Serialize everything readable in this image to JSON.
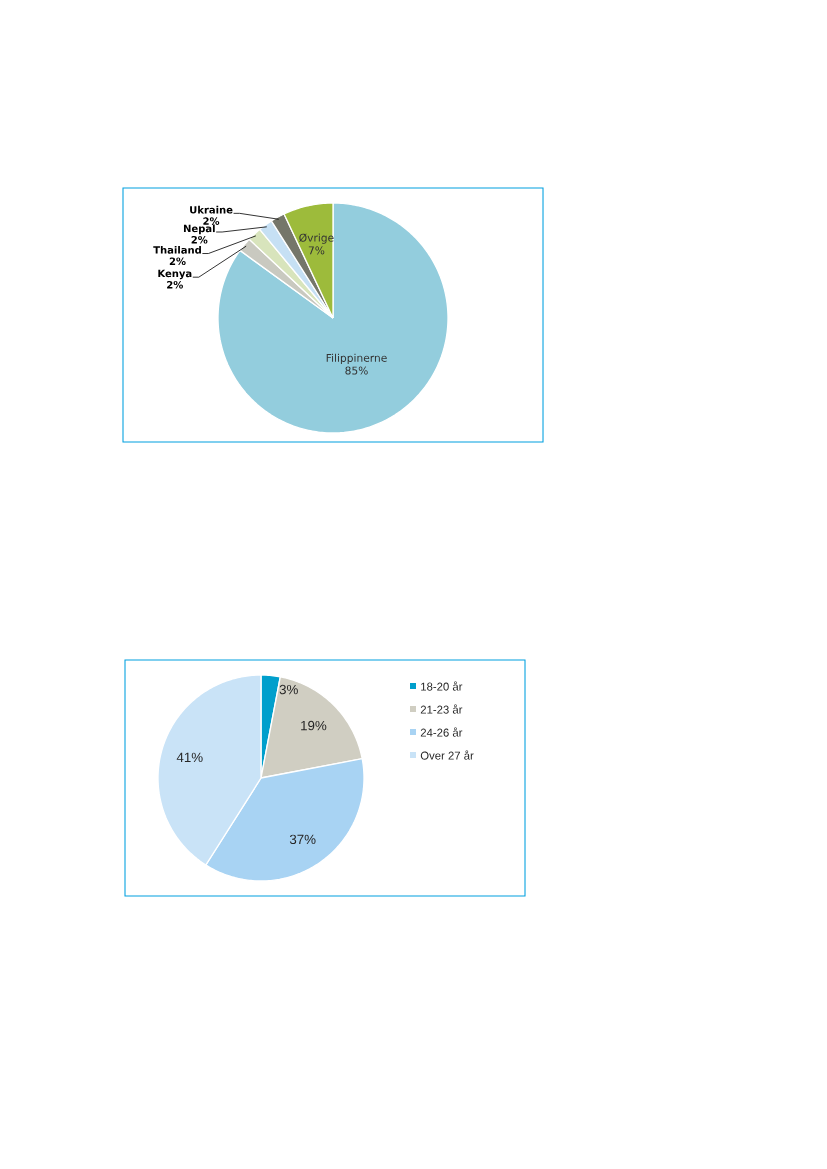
{
  "chart_data": [
    {
      "type": "pie",
      "categories": [
        "Filippinerne",
        "Kenya",
        "Thailand",
        "Nepal",
        "Ukraine",
        "Øvrige"
      ],
      "values": [
        85,
        2,
        2,
        2,
        2,
        7
      ],
      "value_labels": [
        "85%",
        "2%",
        "2%",
        "2%",
        "2%",
        "7%"
      ],
      "colors": [
        "#93cddd",
        "#c9c9c0",
        "#d8e4bc",
        "#c6e0f4",
        "#75766a",
        "#9dbb3b"
      ]
    },
    {
      "type": "pie",
      "categories": [
        "18-20 år",
        "21-23 år",
        "24-26 år",
        "Over 27 år"
      ],
      "values": [
        3,
        19,
        37,
        41
      ],
      "value_labels": [
        "3%",
        "19%",
        "37%",
        "41%"
      ],
      "colors": [
        "#009fcc",
        "#d0cec2",
        "#a8d3f3",
        "#c9e3f7"
      ],
      "legend": "right"
    }
  ]
}
